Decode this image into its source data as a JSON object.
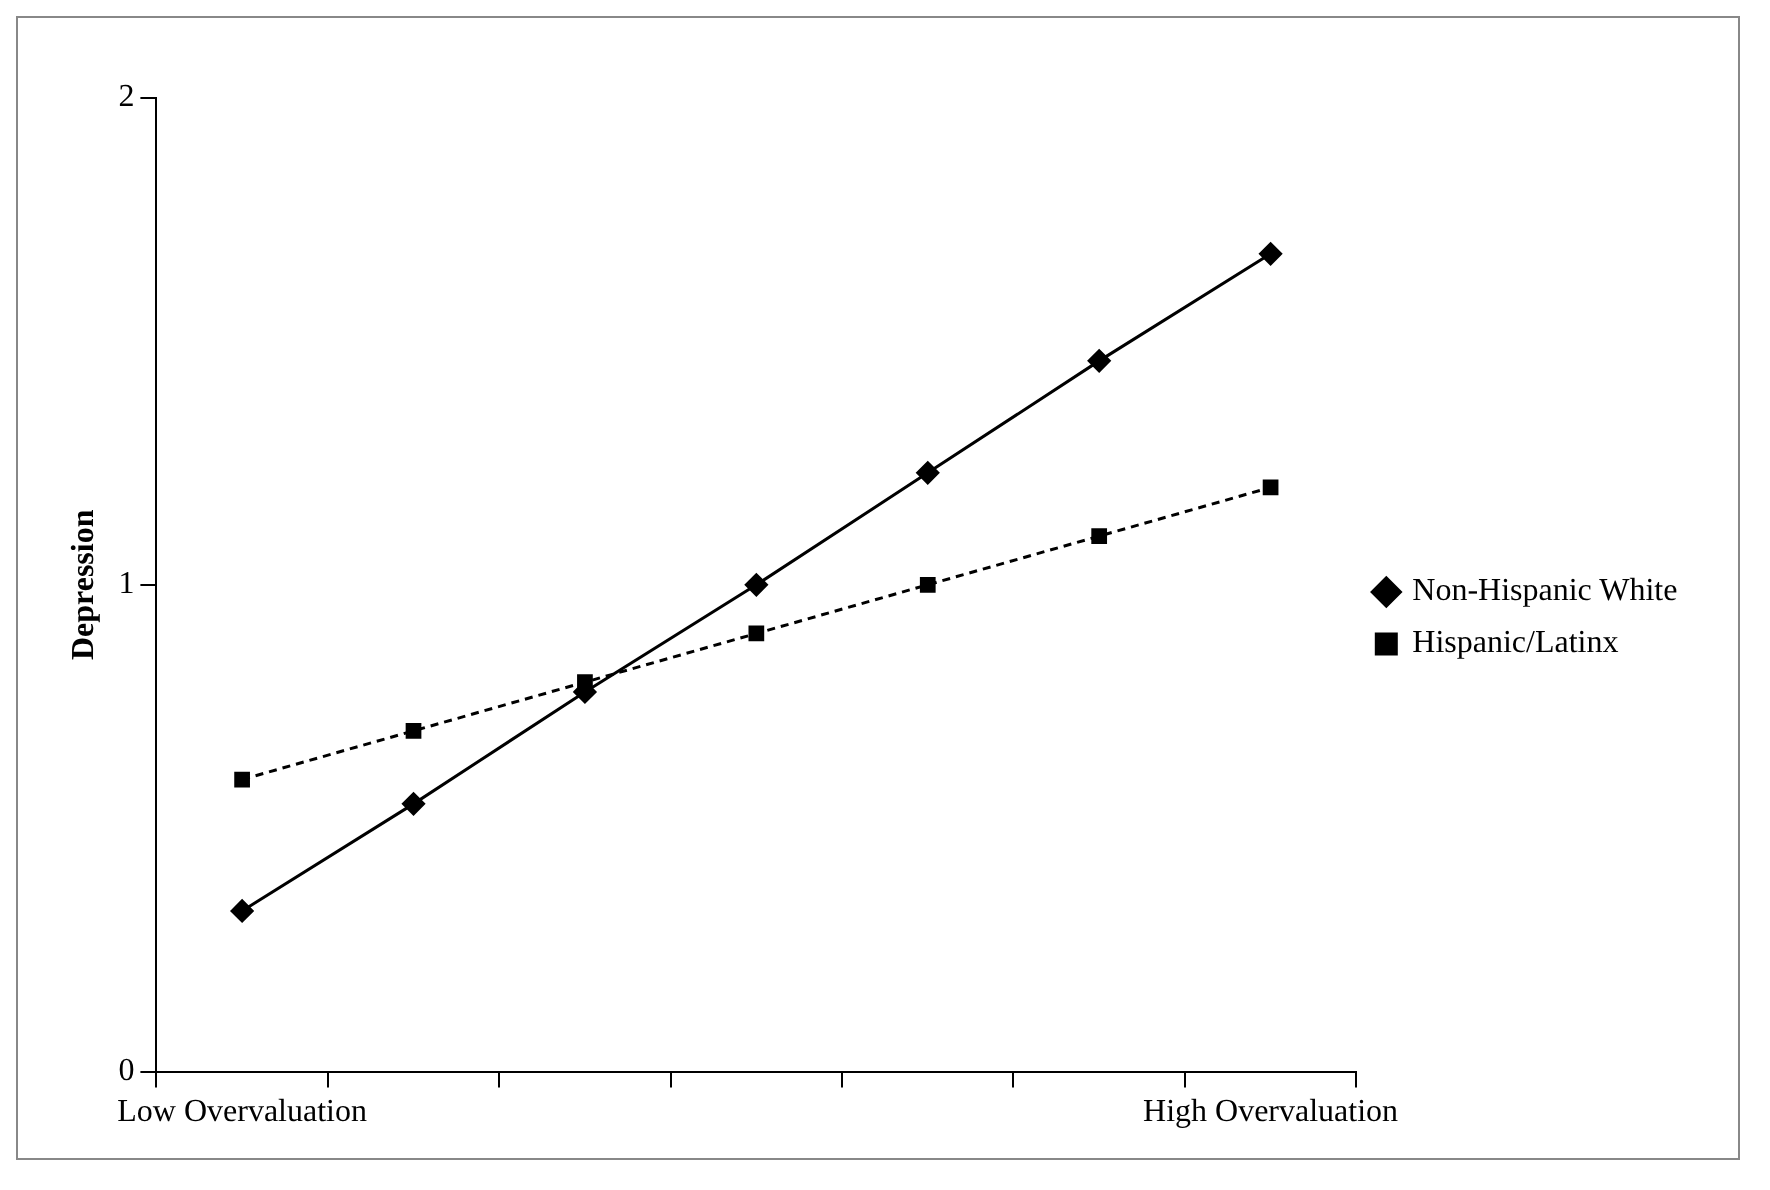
{
  "chart_data": {
    "type": "line",
    "ylabel": "Depression",
    "categories": [
      "Low Overvaluation",
      null,
      null,
      null,
      null,
      null,
      "High Overvaluation"
    ],
    "series": [
      {
        "name": "Non-Hispanic White",
        "color": "#000000",
        "marker": "diamond",
        "line_style": "solid",
        "values": [
          0.33,
          0.55,
          0.78,
          1.0,
          1.23,
          1.46,
          1.68
        ]
      },
      {
        "name": "Hispanic/Latinx",
        "color": "#000000",
        "marker": "square",
        "line_style": "dashed",
        "values": [
          0.6,
          0.7,
          0.8,
          0.9,
          1.0,
          1.1,
          1.2
        ]
      }
    ],
    "ylim": [
      0,
      2
    ],
    "yticks": [
      0,
      1,
      2
    ],
    "grid": false,
    "legend": "right"
  }
}
